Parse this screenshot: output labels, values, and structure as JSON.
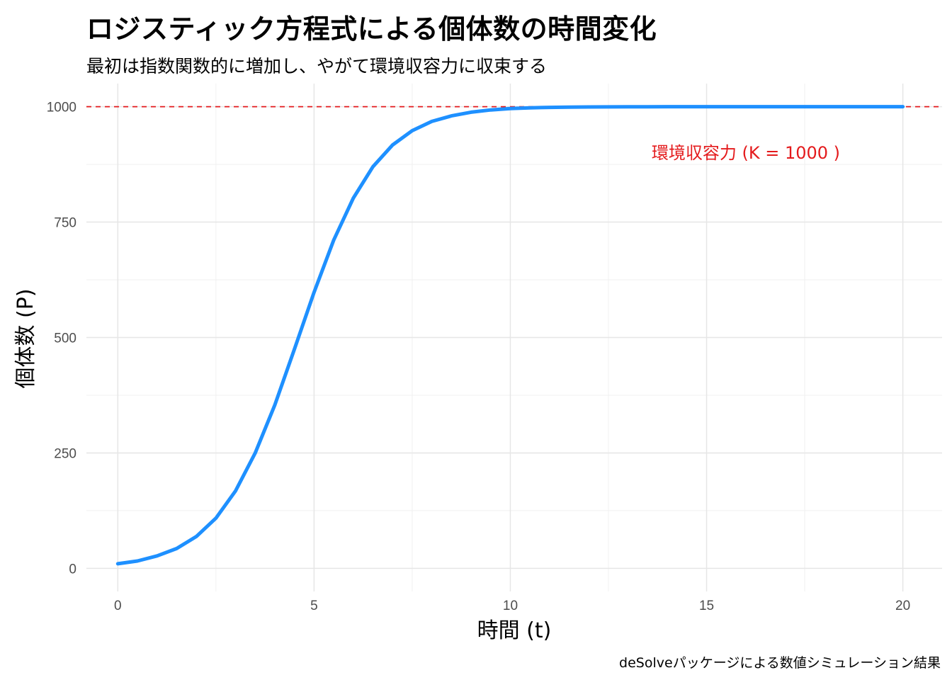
{
  "chart_data": {
    "type": "line",
    "title": "ロジスティック方程式による個体数の時間変化",
    "subtitle": "最初は指数関数的に増加し、やがて環境収容力に収束する",
    "caption": "deSolveパッケージによる数値シミュレーション結果",
    "xlabel": "時間 (t)",
    "ylabel": "個体数 (P)",
    "xlim": [
      -0.8,
      21.0
    ],
    "ylim": [
      -50,
      1050
    ],
    "x_ticks": [
      0,
      5,
      10,
      15,
      20
    ],
    "y_ticks": [
      0,
      250,
      500,
      750,
      1000
    ],
    "x_tick_labels": [
      "0",
      "5",
      "10",
      "15",
      "20"
    ],
    "y_tick_labels": [
      "0",
      "250",
      "500",
      "750",
      "1000"
    ],
    "grid": true,
    "series": [
      {
        "color": "#1E90FF",
        "x": [
          0,
          0.5,
          1,
          1.5,
          2,
          2.5,
          3,
          3.5,
          4,
          4.5,
          5,
          5.5,
          6,
          6.5,
          7,
          7.5,
          8,
          8.5,
          9,
          9.5,
          10,
          10.5,
          11,
          11.5,
          12,
          12.5,
          13,
          13.5,
          14,
          15,
          16,
          17,
          18,
          19,
          20
        ],
        "y": [
          10,
          16,
          27,
          43,
          69,
          109,
          168,
          250,
          354,
          475,
          598,
          711,
          802,
          870,
          917,
          948,
          968,
          980,
          988,
          993,
          996,
          997.5,
          998.5,
          999,
          999.4,
          999.6,
          999.8,
          999.9,
          1000,
          1000,
          1000,
          1000,
          1000,
          1000,
          1000
        ]
      }
    ],
    "hline": {
      "y": 1000,
      "color": "#E41A1C",
      "style": "dashed"
    },
    "annotation": {
      "text": "環境収容力 (K = 1000 )",
      "x": 16,
      "y": 900,
      "color": "#E41A1C"
    }
  }
}
